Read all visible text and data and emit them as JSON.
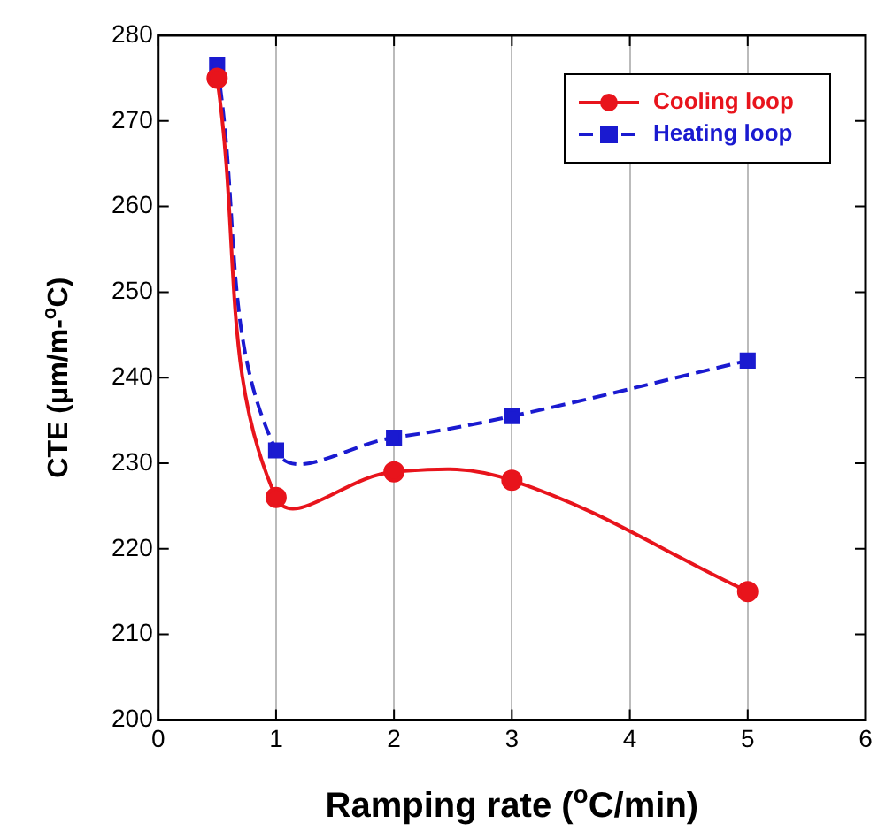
{
  "chart_data": {
    "type": "line",
    "xlabel": "Ramping rate ($^{o}$C/min)",
    "ylabel": "CTE (μm/m-$^{o}$C)",
    "x": [
      0.5,
      1,
      2,
      3,
      5
    ],
    "series": [
      {
        "name": "Cooling loop",
        "color": "#e8141c",
        "values": [
          275,
          226,
          229,
          228,
          215
        ],
        "marker": "circle",
        "line_style": "solid"
      },
      {
        "name": "Heating loop",
        "color": "#1a1ad0",
        "values": [
          276.5,
          231.5,
          233,
          235.5,
          242
        ],
        "marker": "square",
        "line_style": "dashed"
      }
    ],
    "xlim": [
      0,
      6
    ],
    "xticks": [
      0,
      1,
      2,
      3,
      4,
      5,
      6
    ],
    "ylim": [
      200,
      280
    ],
    "yticks": [
      200,
      210,
      220,
      230,
      240,
      250,
      260,
      270,
      280
    ],
    "grid": "x",
    "legend": "top right"
  }
}
